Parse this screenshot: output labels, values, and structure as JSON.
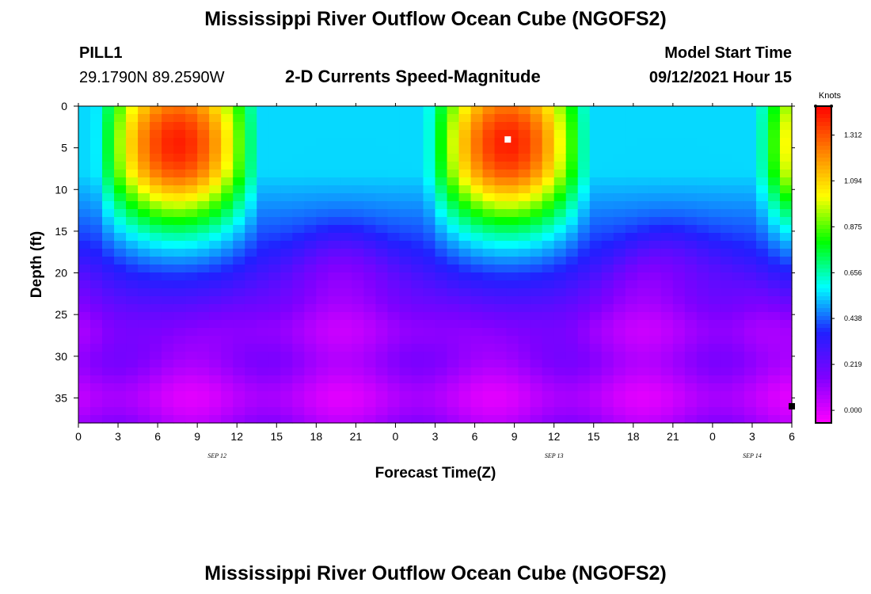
{
  "header": {
    "title": "Mississippi River Outflow Ocean Cube (NGOFS2)",
    "station": "PILL1",
    "coords": "29.1790N  89.2590W",
    "plot_subtitle": "2-D Currents Speed-Magnitude",
    "model_start_label": "Model Start Time",
    "model_start_value": "09/12/2021 Hour 15"
  },
  "footer": {
    "title": "Mississippi River Outflow Ocean Cube (NGOFS2)"
  },
  "chart_data": {
    "type": "heatmap",
    "title": "2-D Currents Speed-Magnitude",
    "xlabel": "Forecast Time(Z)",
    "ylabel": "Depth (ft)",
    "x_hours": [
      0,
      54
    ],
    "ylim": [
      0,
      38
    ],
    "y_inverted": true,
    "x_ticks": [
      "0",
      "3",
      "6",
      "9",
      "12",
      "15",
      "18",
      "21",
      "0",
      "3",
      "6",
      "9",
      "12",
      "15",
      "18",
      "21",
      "0",
      "3",
      "6"
    ],
    "y_ticks": [
      0,
      5,
      10,
      15,
      20,
      25,
      30,
      35
    ],
    "date_labels": [
      {
        "text": "SEP 12",
        "hour": 10.5
      },
      {
        "text": "SEP 13",
        "hour": 36
      },
      {
        "text": "SEP 14",
        "hour": 51
      }
    ],
    "colorbar": {
      "unit": "Knots",
      "min": -0.06,
      "max": 1.45,
      "tick_values": [
        0.0,
        0.219,
        0.438,
        0.656,
        0.875,
        1.094,
        1.312
      ],
      "tick_labels": [
        "0.000",
        "0.219",
        "0.438",
        "0.656",
        "0.875",
        "1.094",
        "1.312"
      ],
      "colors": [
        "#ff00ff",
        "#8000ff",
        "#2020ff",
        "#00ffff",
        "#00ff00",
        "#ffff00",
        "#ff8000",
        "#ff0000"
      ]
    },
    "features": [
      {
        "name": "surface-max-1",
        "hour": 7,
        "depth": 4,
        "value": 1.4
      },
      {
        "name": "surface-max-2",
        "hour": 33,
        "depth": 4,
        "value": 1.42
      },
      {
        "name": "bottom-min-1",
        "hour": 6,
        "depth": 35,
        "value": 0.0
      },
      {
        "name": "bottom-min-2",
        "hour": 37,
        "depth": 35,
        "value": 0.02
      }
    ],
    "markers": [
      {
        "name": "white-marker",
        "hour": 32.5,
        "depth": 4
      },
      {
        "name": "black-marker",
        "hour": 54,
        "depth": 36
      }
    ]
  }
}
